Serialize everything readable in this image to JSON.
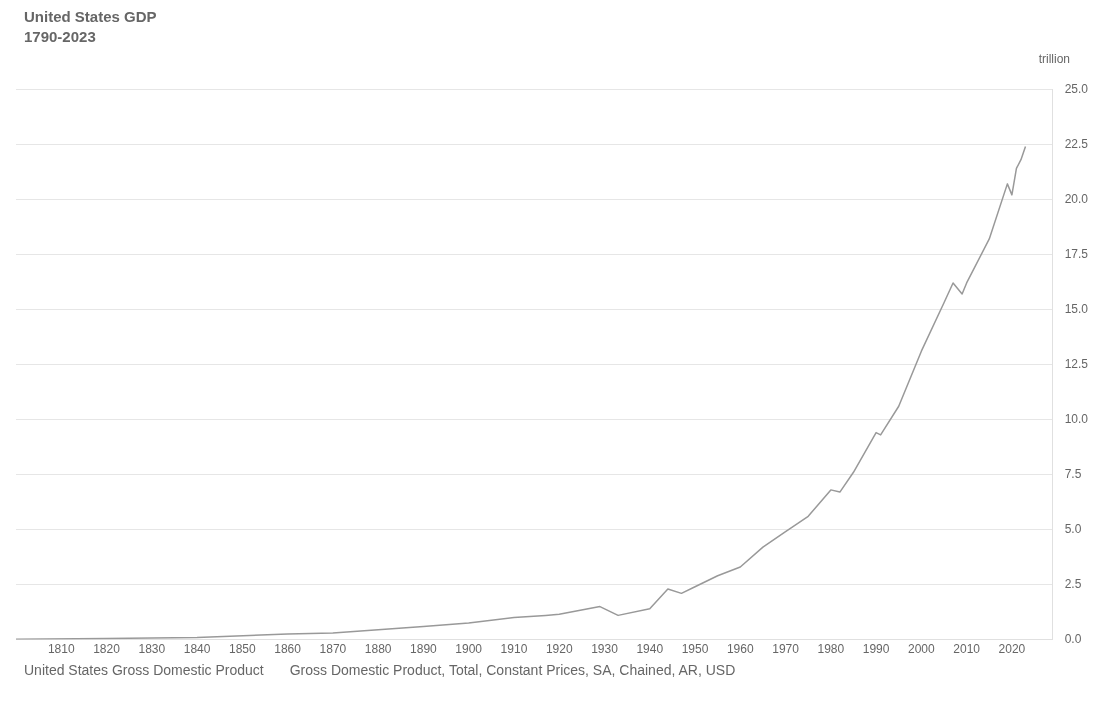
{
  "chart_data": {
    "type": "line",
    "title": "United States GDP",
    "subtitle": "1790-2023",
    "ylabel": "trillion",
    "annotations": [
      "United States Gross Domestic Product",
      "Gross Domestic Product, Total, Constant Prices, SA, Chained, AR, USD"
    ],
    "series": [
      {
        "color": "#999999",
        "x": [
          1800,
          1820,
          1840,
          1860,
          1870,
          1880,
          1890,
          1900,
          1910,
          1917,
          1920,
          1929,
          1933,
          1940,
          1944,
          1947,
          1950,
          1955,
          1960,
          1965,
          1970,
          1975,
          1980,
          1982,
          1985,
          1990,
          1991,
          1995,
          2000,
          2005,
          2007,
          2009,
          2010,
          2015,
          2019,
          2020,
          2021,
          2022,
          2023
        ],
        "values": [
          0.02,
          0.05,
          0.1,
          0.25,
          0.3,
          0.45,
          0.6,
          0.75,
          1.0,
          1.1,
          1.15,
          1.5,
          1.1,
          1.4,
          2.3,
          2.1,
          2.4,
          2.9,
          3.3,
          4.2,
          4.9,
          5.6,
          6.8,
          6.7,
          7.6,
          9.4,
          9.3,
          10.6,
          13.1,
          15.3,
          16.2,
          15.7,
          16.2,
          18.2,
          20.7,
          20.2,
          21.4,
          21.8,
          22.4
        ]
      }
    ],
    "xlim": [
      1800,
      2029
    ],
    "xticks": [
      1810,
      1820,
      1830,
      1840,
      1850,
      1860,
      1870,
      1880,
      1890,
      1900,
      1910,
      1920,
      1930,
      1940,
      1950,
      1960,
      1970,
      1980,
      1990,
      2000,
      2010,
      2020
    ],
    "ylim": [
      0,
      25
    ],
    "yticks": [
      {
        "value": 0,
        "label": "0.0"
      },
      {
        "value": 2.5,
        "label": "2.5"
      },
      {
        "value": 5,
        "label": "5.0"
      },
      {
        "value": 7.5,
        "label": "7.5"
      },
      {
        "value": 10,
        "label": "10.0"
      },
      {
        "value": 12.5,
        "label": "12.5"
      },
      {
        "value": 15,
        "label": "15.0"
      },
      {
        "value": 17.5,
        "label": "17.5"
      },
      {
        "value": 20,
        "label": "20.0"
      },
      {
        "value": 22.5,
        "label": "22.5"
      },
      {
        "value": 25,
        "label": "25.0"
      }
    ],
    "grid": "y",
    "legend": false,
    "marker": "none",
    "line_style": "solid"
  }
}
